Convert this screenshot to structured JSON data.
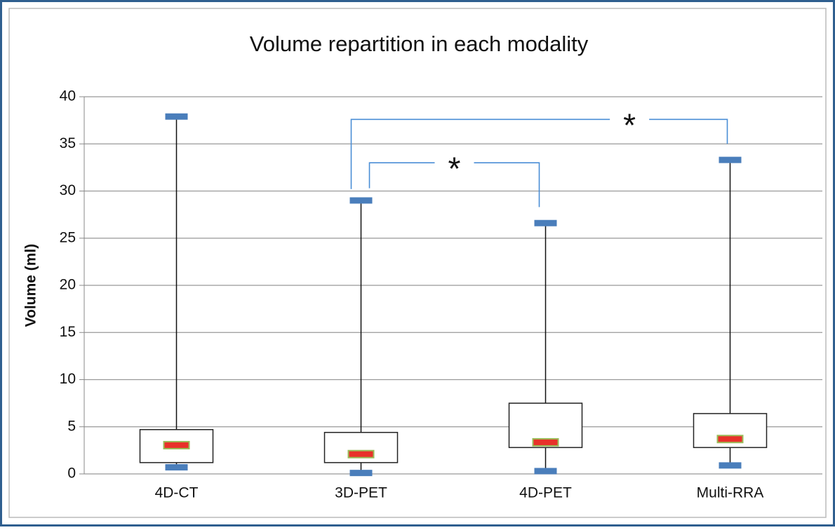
{
  "chart_data": {
    "type": "box",
    "title": "Volume repartition in each modality",
    "y_label": "Volume (ml)",
    "categories": [
      "4D-CT",
      "3D-PET",
      "4D-PET",
      "Multi-RRA"
    ],
    "min": [
      0.7,
      0.1,
      0.3,
      0.9
    ],
    "q1": [
      1.2,
      1.2,
      2.8,
      2.8
    ],
    "median": [
      3.05,
      2.1,
      3.35,
      3.7
    ],
    "q3": [
      4.7,
      4.4,
      7.5,
      6.4
    ],
    "max": [
      37.9,
      29.0,
      26.6,
      33.3
    ],
    "ylim": [
      0,
      40
    ],
    "yticks": [
      0,
      5,
      10,
      15,
      20,
      25,
      30,
      35,
      40
    ],
    "grid": true,
    "whisker_color": "#4a7ebb",
    "median_color": "#e8312a",
    "bracket_color": "#4a8ed6",
    "annotations": [
      {
        "text": "*",
        "from": 1,
        "to": 3,
        "y": 37.6,
        "left_end": 30.2,
        "right_end": 35.0
      },
      {
        "text": "*",
        "from": 1,
        "to": 2,
        "y": 33.0,
        "left_end": 30.3,
        "right_end": 28.3
      }
    ]
  }
}
